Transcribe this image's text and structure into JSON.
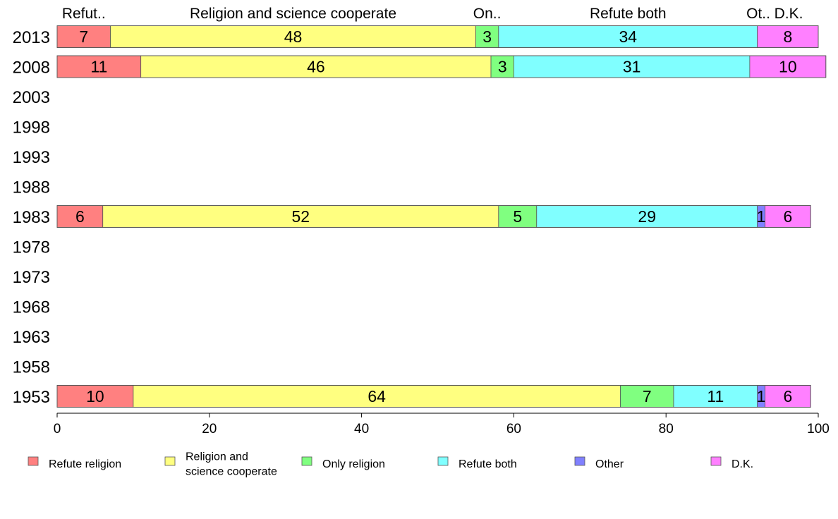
{
  "chart_data": {
    "type": "bar",
    "orientation": "horizontal",
    "stacked": true,
    "title": "",
    "xlabel": "",
    "ylabel": "",
    "xlim": [
      0,
      100
    ],
    "x_ticks": [
      0,
      20,
      40,
      60,
      80,
      100
    ],
    "grid": false,
    "legend_position": "bottom",
    "categories": [
      "2013",
      "2008",
      "2003",
      "1998",
      "1993",
      "1988",
      "1983",
      "1978",
      "1973",
      "1968",
      "1963",
      "1958",
      "1953"
    ],
    "series": [
      {
        "name": "Refute religion",
        "color": "#ff8080",
        "values": [
          7,
          11,
          null,
          null,
          null,
          null,
          6,
          null,
          null,
          null,
          null,
          null,
          10
        ],
        "top_label": "Refut.."
      },
      {
        "name": "Religion and science cooperate",
        "legend_lines": [
          "Religion and",
          "science cooperate"
        ],
        "color": "#ffff80",
        "values": [
          48,
          46,
          null,
          null,
          null,
          null,
          52,
          null,
          null,
          null,
          null,
          null,
          64
        ],
        "top_label": "Religion and science cooperate"
      },
      {
        "name": "Only religion",
        "color": "#80ff80",
        "values": [
          3,
          3,
          null,
          null,
          null,
          null,
          5,
          null,
          null,
          null,
          null,
          null,
          7
        ],
        "top_label": "On.."
      },
      {
        "name": "Refute both",
        "color": "#80ffff",
        "values": [
          34,
          31,
          null,
          null,
          null,
          null,
          29,
          null,
          null,
          null,
          null,
          null,
          11
        ],
        "top_label": "Refute both"
      },
      {
        "name": "Other",
        "color": "#8080ff",
        "values": [
          0,
          0,
          null,
          null,
          null,
          null,
          1,
          null,
          null,
          null,
          null,
          null,
          1
        ],
        "top_label": "Ot.."
      },
      {
        "name": "D.K.",
        "color": "#ff80ff",
        "values": [
          8,
          10,
          null,
          null,
          null,
          null,
          6,
          null,
          null,
          null,
          null,
          null,
          6
        ],
        "top_label": "D.K."
      }
    ]
  }
}
